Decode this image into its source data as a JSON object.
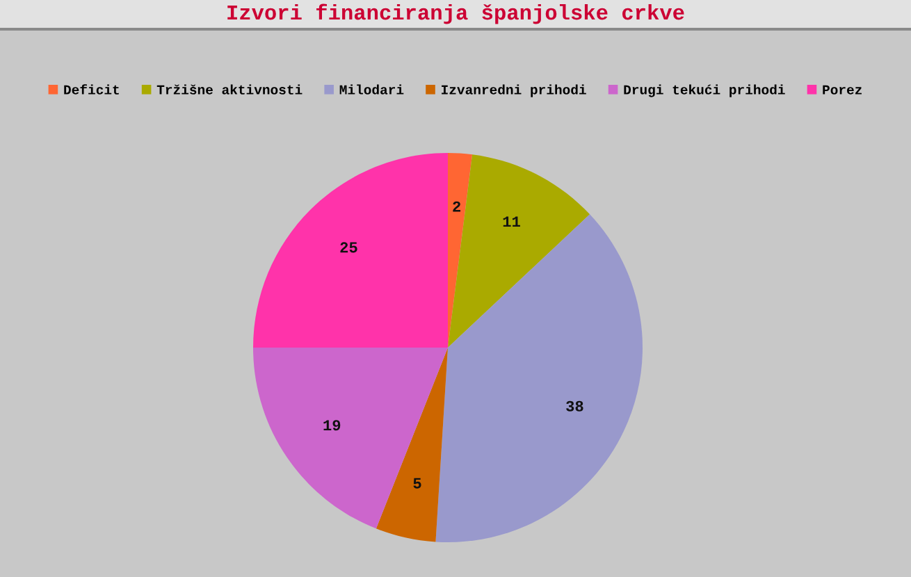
{
  "chart_data": {
    "type": "pie",
    "title": "Izvori financiranja španjolske crkve",
    "categories": [
      "Deficit",
      "Tržišne aktivnosti",
      "Milodari",
      "Izvanredni prihodi",
      "Drugi tekući prihodi",
      "Porez"
    ],
    "values": [
      2,
      11,
      38,
      5,
      19,
      25
    ],
    "colors": [
      "#ff6633",
      "#aaaa00",
      "#9999cc",
      "#cc6600",
      "#cc66cc",
      "#ff33aa"
    ],
    "data_labels": true,
    "legend": "top"
  }
}
